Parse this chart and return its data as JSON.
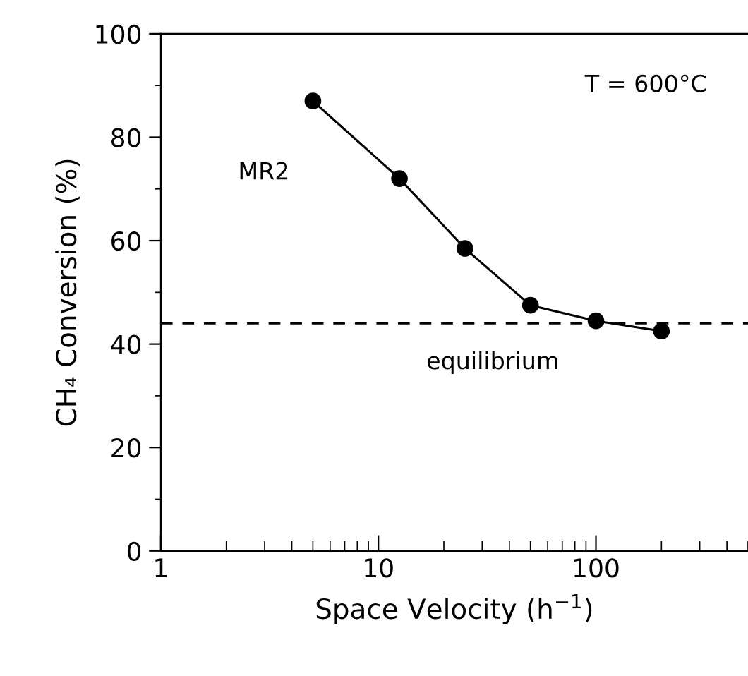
{
  "chart_data": {
    "type": "line",
    "xlabel": "Space Velocity (h$^{−1}$)",
    "ylabel": "CH₄ Conversion (%)",
    "log": "x",
    "xlim": [
      1,
      500
    ],
    "xticks": [
      1,
      10,
      100
    ],
    "ylim": [
      0,
      100
    ],
    "yticks": [
      0,
      20,
      40,
      60,
      80,
      100
    ],
    "marker": "circle",
    "line_style": "solid",
    "grid": false,
    "legend": false,
    "series": [
      {
        "name": "MR2",
        "color": "#000000",
        "x": [
          5,
          12.5,
          25,
          50,
          100,
          200
        ],
        "values": [
          87,
          72,
          58.5,
          47.5,
          44.5,
          42.5
        ]
      }
    ],
    "ref_lines": [
      {
        "axis": "y",
        "value": 44,
        "label": "equilibrium",
        "color": "#000000",
        "line_style": "dashed"
      }
    ],
    "annotations": [
      "T = 600°C"
    ]
  }
}
